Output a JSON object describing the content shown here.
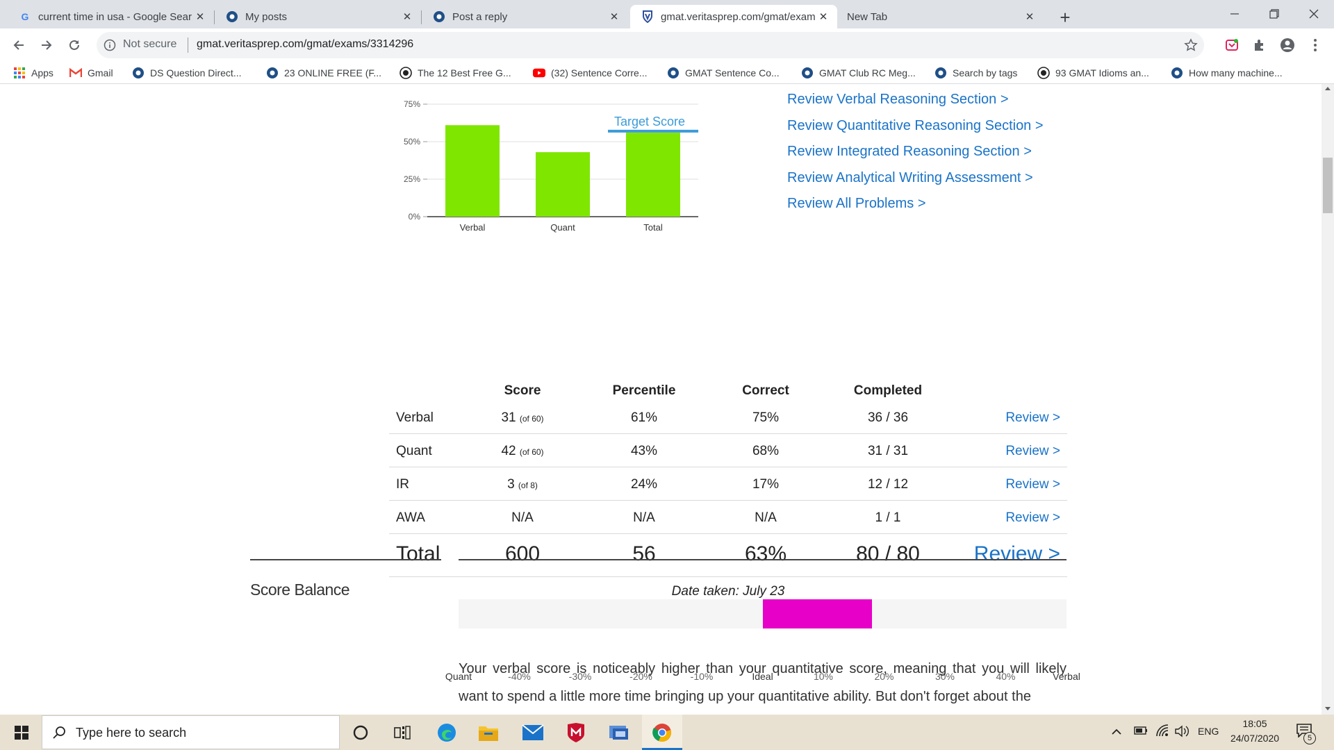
{
  "browser": {
    "tabs": [
      {
        "title": "current time in usa - Google Sear",
        "icon": "google-icon",
        "active": false
      },
      {
        "title": "My posts",
        "icon": "gmatclub-icon",
        "active": false
      },
      {
        "title": "Post a reply",
        "icon": "gmatclub-icon",
        "active": false
      },
      {
        "title": "gmat.veritasprep.com/gmat/exam",
        "icon": "veritas-icon",
        "active": true
      },
      {
        "title": "New Tab",
        "icon": "",
        "active": false
      }
    ],
    "new_tab": "+",
    "security_label": "Not secure",
    "url": "gmat.veritasprep.com/gmat/exams/3314296",
    "bookmarks": [
      {
        "label": "Apps",
        "icon": "apps-grid-icon"
      },
      {
        "label": "Gmail",
        "icon": "gmail-icon"
      },
      {
        "label": "DS Question Direct...",
        "icon": "gmatclub-icon"
      },
      {
        "label": "23 ONLINE FREE (F...",
        "icon": "gmatclub-icon"
      },
      {
        "label": "The 12 Best Free G...",
        "icon": "circle-logo-icon"
      },
      {
        "label": "(32) Sentence Corre...",
        "icon": "youtube-icon"
      },
      {
        "label": "GMAT Sentence Co...",
        "icon": "gmatclub-icon"
      },
      {
        "label": "GMAT Club RC Meg...",
        "icon": "gmatclub-icon"
      },
      {
        "label": "Search by tags",
        "icon": "gmatclub-icon"
      },
      {
        "label": "93 GMAT Idioms an...",
        "icon": "circle-logo-icon"
      },
      {
        "label": "How many machine...",
        "icon": "gmatclub-icon"
      }
    ]
  },
  "chart_data": {
    "type": "bar",
    "categories": [
      "Verbal",
      "Quant",
      "Total"
    ],
    "values": [
      61,
      43,
      56
    ],
    "ytick_labels": [
      "0%",
      "25%",
      "50%",
      "75%"
    ],
    "yticks": [
      0,
      25,
      50,
      75
    ],
    "ylim": [
      0,
      75
    ],
    "bar_color": "#7fe600",
    "target_score": {
      "label": "Target Score",
      "value": 57,
      "color": "#3b9bd8"
    },
    "grid": true
  },
  "review_links": [
    "Review Verbal Reasoning Section >",
    "Review Quantitative Reasoning Section >",
    "Review Integrated Reasoning Section >",
    "Review Analytical Writing Assessment >",
    "Review All Problems >"
  ],
  "score_table": {
    "headers": [
      "Score",
      "Percentile",
      "Correct",
      "Completed"
    ],
    "rows": [
      {
        "section": "Verbal",
        "score": "31",
        "of": "(of 60)",
        "percentile": "61%",
        "correct": "75%",
        "completed": "36 / 36",
        "review": "Review >"
      },
      {
        "section": "Quant",
        "score": "42",
        "of": "(of 60)",
        "percentile": "43%",
        "correct": "68%",
        "completed": "31 / 31",
        "review": "Review >"
      },
      {
        "section": "IR",
        "score": "3",
        "of": "(of 8)",
        "percentile": "24%",
        "correct": "17%",
        "completed": "12 / 12",
        "review": "Review >"
      },
      {
        "section": "AWA",
        "score": "N/A",
        "of": "",
        "percentile": "N/A",
        "correct": "N/A",
        "completed": "1 / 1",
        "review": "Review >"
      }
    ],
    "total": {
      "section": "Total",
      "score": "600",
      "percentile": "56",
      "correct": "63%",
      "completed": "80 / 80",
      "review": "Review >"
    },
    "date_taken": "Date taken: July 23"
  },
  "score_balance": {
    "title": "Score Balance",
    "scale_labels": [
      "Quant",
      "-40%",
      "-30%",
      "-20%",
      "-10%",
      "Ideal",
      "10%",
      "20%",
      "30%",
      "40%",
      "Verbal"
    ],
    "range_start_pct": 0,
    "range_end_pct": 18,
    "bar_color": "#e600c8",
    "paragraph": "Your verbal score is noticeably higher than your quantitative score, meaning that you will likely want to spend a little more time bringing up your quantitative ability. But don't forget about the"
  },
  "taskbar": {
    "search_placeholder": "Type here to search",
    "language": "ENG",
    "time": "18:05",
    "date": "24/07/2020",
    "notifications": "5"
  }
}
